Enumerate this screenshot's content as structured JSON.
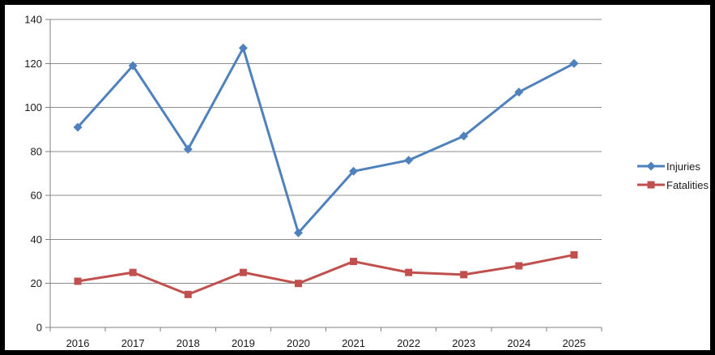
{
  "chart_data": {
    "type": "line",
    "title": "",
    "xlabel": "",
    "ylabel": "",
    "categories": [
      "2016",
      "2017",
      "2018",
      "2019",
      "2020",
      "2021",
      "2022",
      "2023",
      "2024",
      "2025"
    ],
    "series": [
      {
        "name": "Injuries",
        "values": [
          91,
          119,
          81,
          127,
          43,
          71,
          76,
          87,
          107,
          120
        ],
        "color": "#4F81BD",
        "marker": "diamond"
      },
      {
        "name": "Fatalities",
        "values": [
          21,
          25,
          15,
          25,
          20,
          30,
          25,
          24,
          28,
          33
        ],
        "color": "#C0504D",
        "marker": "square"
      }
    ],
    "ylim": [
      0,
      140
    ],
    "ytick_step": 20,
    "yticks": [
      0,
      20,
      40,
      60,
      80,
      100,
      120,
      140
    ],
    "grid": true,
    "legend_position": "right"
  },
  "styles": {
    "gridline_color": "#8C8C8C",
    "axis_color": "#7F7F7F",
    "label_color": "#1a1a1a",
    "background": "#FFFFFF",
    "frame_color": "#000000"
  }
}
